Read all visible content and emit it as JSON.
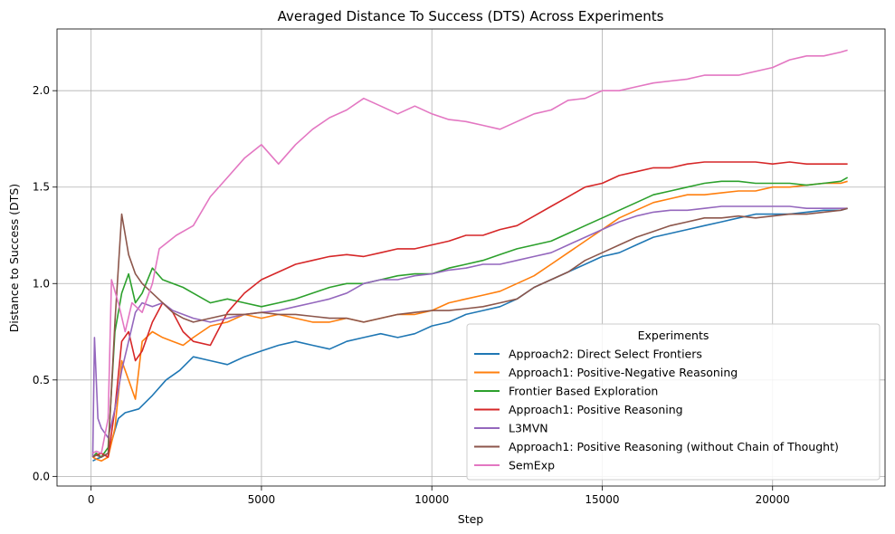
{
  "chart_data": {
    "type": "line",
    "title": "Averaged Distance To Success (DTS) Across Experiments",
    "xlabel": "Step",
    "ylabel": "Distance to Success (DTS)",
    "xlim": [
      -1000,
      23300
    ],
    "ylim": [
      -0.05,
      2.32
    ],
    "xticks": [
      0,
      5000,
      10000,
      15000,
      20000
    ],
    "yticks": [
      0.0,
      0.5,
      1.0,
      1.5,
      2.0
    ],
    "xtick_labels": [
      "0",
      "5000",
      "10000",
      "15000",
      "20000"
    ],
    "ytick_labels": [
      "0.0",
      "0.5",
      "1.0",
      "1.5",
      "2.0"
    ],
    "grid": true,
    "legend": {
      "title": "Experiments",
      "placement": "lower-right"
    },
    "series": [
      {
        "name": "Approach2: Direct Select Frontiers",
        "color": "#1f77b4",
        "x": [
          50,
          150,
          300,
          500,
          800,
          1000,
          1400,
          1800,
          2200,
          2600,
          3000,
          3500,
          4000,
          4500,
          5000,
          5500,
          6000,
          6500,
          7000,
          7500,
          8000,
          8500,
          9000,
          9500,
          10000,
          10500,
          11000,
          11500,
          12000,
          12500,
          13000,
          13500,
          14000,
          14500,
          15000,
          15500,
          16000,
          16500,
          17000,
          17500,
          18000,
          18500,
          19000,
          19500,
          20000,
          20500,
          21000,
          21500,
          22000,
          22200
        ],
        "y": [
          0.08,
          0.09,
          0.1,
          0.12,
          0.3,
          0.33,
          0.35,
          0.42,
          0.5,
          0.55,
          0.62,
          0.6,
          0.58,
          0.62,
          0.65,
          0.68,
          0.7,
          0.68,
          0.66,
          0.7,
          0.72,
          0.74,
          0.72,
          0.74,
          0.78,
          0.8,
          0.84,
          0.86,
          0.88,
          0.92,
          0.98,
          1.02,
          1.06,
          1.1,
          1.14,
          1.16,
          1.2,
          1.24,
          1.26,
          1.28,
          1.3,
          1.32,
          1.34,
          1.36,
          1.36,
          1.36,
          1.37,
          1.38,
          1.38,
          1.39
        ]
      },
      {
        "name": "Approach1: Positive-Negative Reasoning",
        "color": "#ff7f0e",
        "x": [
          50,
          150,
          300,
          500,
          700,
          900,
          1100,
          1300,
          1500,
          1800,
          2100,
          2400,
          2700,
          3000,
          3500,
          4000,
          4500,
          5000,
          5500,
          6000,
          6500,
          7000,
          7500,
          8000,
          8500,
          9000,
          9500,
          10000,
          10500,
          11000,
          11500,
          12000,
          12500,
          13000,
          13500,
          14000,
          14500,
          15000,
          15500,
          16000,
          16500,
          17000,
          17500,
          18000,
          18500,
          19000,
          19500,
          20000,
          20500,
          21000,
          21500,
          22000,
          22200
        ],
        "y": [
          0.1,
          0.09,
          0.08,
          0.1,
          0.25,
          0.6,
          0.5,
          0.4,
          0.7,
          0.75,
          0.72,
          0.7,
          0.68,
          0.72,
          0.78,
          0.8,
          0.84,
          0.82,
          0.84,
          0.82,
          0.8,
          0.8,
          0.82,
          0.8,
          0.82,
          0.84,
          0.84,
          0.86,
          0.9,
          0.92,
          0.94,
          0.96,
          1.0,
          1.04,
          1.1,
          1.16,
          1.22,
          1.28,
          1.34,
          1.38,
          1.42,
          1.44,
          1.46,
          1.46,
          1.47,
          1.48,
          1.48,
          1.5,
          1.5,
          1.51,
          1.52,
          1.52,
          1.53
        ]
      },
      {
        "name": "Frontier Based Exploration",
        "color": "#2ca02c",
        "x": [
          50,
          150,
          300,
          500,
          700,
          900,
          1100,
          1300,
          1500,
          1800,
          2100,
          2400,
          2700,
          3000,
          3500,
          4000,
          4500,
          5000,
          5500,
          6000,
          6500,
          7000,
          7500,
          8000,
          8500,
          9000,
          9500,
          10000,
          10500,
          11000,
          11500,
          12000,
          12500,
          13000,
          13500,
          14000,
          14500,
          15000,
          15500,
          16000,
          16500,
          17000,
          17500,
          18000,
          18500,
          19000,
          19500,
          20000,
          20500,
          21000,
          21500,
          22000,
          22200
        ],
        "y": [
          0.1,
          0.12,
          0.1,
          0.15,
          0.75,
          0.95,
          1.05,
          0.9,
          0.95,
          1.08,
          1.02,
          1.0,
          0.98,
          0.95,
          0.9,
          0.92,
          0.9,
          0.88,
          0.9,
          0.92,
          0.95,
          0.98,
          1.0,
          1.0,
          1.02,
          1.04,
          1.05,
          1.05,
          1.08,
          1.1,
          1.12,
          1.15,
          1.18,
          1.2,
          1.22,
          1.26,
          1.3,
          1.34,
          1.38,
          1.42,
          1.46,
          1.48,
          1.5,
          1.52,
          1.53,
          1.53,
          1.52,
          1.52,
          1.52,
          1.51,
          1.52,
          1.53,
          1.55
        ]
      },
      {
        "name": "Approach1: Positive Reasoning",
        "color": "#d62728",
        "x": [
          50,
          150,
          300,
          500,
          700,
          900,
          1100,
          1300,
          1500,
          1800,
          2100,
          2400,
          2700,
          3000,
          3500,
          4000,
          4500,
          5000,
          5500,
          6000,
          6500,
          7000,
          7500,
          8000,
          8500,
          9000,
          9500,
          10000,
          10500,
          11000,
          11500,
          12000,
          12500,
          13000,
          13500,
          14000,
          14500,
          15000,
          15500,
          16000,
          16500,
          17000,
          17500,
          18000,
          18500,
          19000,
          19500,
          20000,
          20500,
          21000,
          21500,
          22000,
          22200
        ],
        "y": [
          0.1,
          0.11,
          0.12,
          0.1,
          0.35,
          0.7,
          0.75,
          0.6,
          0.65,
          0.8,
          0.9,
          0.85,
          0.75,
          0.7,
          0.68,
          0.85,
          0.95,
          1.02,
          1.06,
          1.1,
          1.12,
          1.14,
          1.15,
          1.14,
          1.16,
          1.18,
          1.18,
          1.2,
          1.22,
          1.25,
          1.25,
          1.28,
          1.3,
          1.35,
          1.4,
          1.45,
          1.5,
          1.52,
          1.56,
          1.58,
          1.6,
          1.6,
          1.62,
          1.63,
          1.63,
          1.63,
          1.63,
          1.62,
          1.63,
          1.62,
          1.62,
          1.62,
          1.62
        ]
      },
      {
        "name": "L3MVN",
        "color": "#9467bd",
        "x": [
          50,
          100,
          200,
          300,
          500,
          700,
          900,
          1100,
          1300,
          1500,
          1800,
          2100,
          2400,
          2700,
          3000,
          3500,
          4000,
          4500,
          5000,
          5500,
          6000,
          6500,
          7000,
          7500,
          8000,
          8500,
          9000,
          9500,
          10000,
          10500,
          11000,
          11500,
          12000,
          12500,
          13000,
          13500,
          14000,
          14500,
          15000,
          15500,
          16000,
          16500,
          17000,
          17500,
          18000,
          18500,
          19000,
          19500,
          20000,
          20500,
          21000,
          21500,
          22000,
          22200
        ],
        "y": [
          0.1,
          0.72,
          0.3,
          0.25,
          0.2,
          0.35,
          0.55,
          0.7,
          0.85,
          0.9,
          0.88,
          0.9,
          0.86,
          0.84,
          0.82,
          0.8,
          0.82,
          0.84,
          0.85,
          0.86,
          0.88,
          0.9,
          0.92,
          0.95,
          1.0,
          1.02,
          1.02,
          1.04,
          1.05,
          1.07,
          1.08,
          1.1,
          1.1,
          1.12,
          1.14,
          1.16,
          1.2,
          1.24,
          1.28,
          1.32,
          1.35,
          1.37,
          1.38,
          1.38,
          1.39,
          1.4,
          1.4,
          1.4,
          1.4,
          1.4,
          1.39,
          1.39,
          1.39,
          1.39
        ]
      },
      {
        "name": "Approach1: Positive Reasoning (without Chain of Thought)",
        "color": "#8c564b",
        "x": [
          50,
          150,
          300,
          500,
          700,
          900,
          1100,
          1300,
          1500,
          1800,
          2100,
          2400,
          2700,
          3000,
          3500,
          4000,
          4500,
          5000,
          5500,
          6000,
          6500,
          7000,
          7500,
          8000,
          8500,
          9000,
          9500,
          10000,
          10500,
          11000,
          11500,
          12000,
          12500,
          13000,
          13500,
          14000,
          14500,
          15000,
          15500,
          16000,
          16500,
          17000,
          17500,
          18000,
          18500,
          19000,
          19500,
          20000,
          20500,
          21000,
          21500,
          22000,
          22200
        ],
        "y": [
          0.1,
          0.11,
          0.1,
          0.12,
          0.8,
          1.36,
          1.15,
          1.05,
          1.0,
          0.95,
          0.9,
          0.85,
          0.82,
          0.8,
          0.82,
          0.84,
          0.84,
          0.85,
          0.84,
          0.84,
          0.83,
          0.82,
          0.82,
          0.8,
          0.82,
          0.84,
          0.85,
          0.86,
          0.86,
          0.87,
          0.88,
          0.9,
          0.92,
          0.98,
          1.02,
          1.06,
          1.12,
          1.16,
          1.2,
          1.24,
          1.27,
          1.3,
          1.32,
          1.34,
          1.34,
          1.35,
          1.34,
          1.35,
          1.36,
          1.36,
          1.37,
          1.38,
          1.39
        ]
      },
      {
        "name": "SemExp",
        "color": "#e377c2",
        "x": [
          50,
          150,
          300,
          500,
          600,
          800,
          1000,
          1200,
          1500,
          1800,
          2000,
          2500,
          3000,
          3500,
          4000,
          4500,
          5000,
          5500,
          6000,
          6500,
          7000,
          7500,
          8000,
          8500,
          9000,
          9500,
          10000,
          10500,
          11000,
          11500,
          12000,
          12500,
          13000,
          13500,
          14000,
          14500,
          15000,
          15500,
          16000,
          16500,
          17000,
          17500,
          18000,
          18500,
          19000,
          19500,
          20000,
          20500,
          21000,
          21500,
          22000,
          22200
        ],
        "y": [
          0.12,
          0.13,
          0.12,
          0.3,
          1.02,
          0.9,
          0.75,
          0.9,
          0.85,
          1.0,
          1.18,
          1.25,
          1.3,
          1.45,
          1.55,
          1.65,
          1.72,
          1.62,
          1.72,
          1.8,
          1.86,
          1.9,
          1.96,
          1.92,
          1.88,
          1.92,
          1.88,
          1.85,
          1.84,
          1.82,
          1.8,
          1.84,
          1.88,
          1.9,
          1.95,
          1.96,
          2.0,
          2.0,
          2.02,
          2.04,
          2.05,
          2.06,
          2.08,
          2.08,
          2.08,
          2.1,
          2.12,
          2.16,
          2.18,
          2.18,
          2.2,
          2.21
        ]
      }
    ]
  }
}
